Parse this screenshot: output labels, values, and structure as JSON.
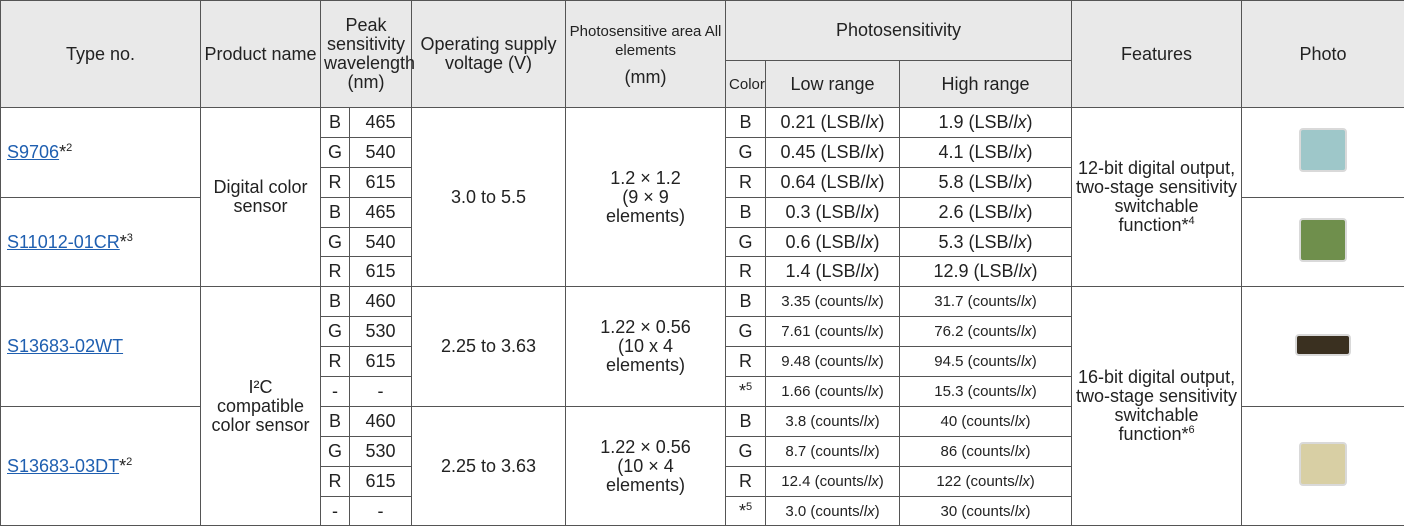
{
  "header": {
    "type_no": "Type no.",
    "product_name": "Product name",
    "peak": "Peak sensitivity wavelength (nm)",
    "voltage": "Operating supply voltage (V)",
    "area": "Photosensitive area All elements",
    "area_unit": "(mm)",
    "photosensitivity": "Photosensitivity",
    "color": "Color",
    "low": "Low range",
    "high": "High range",
    "features": "Features",
    "photo": "Photo"
  },
  "groups": [
    {
      "product_name": "Digital color sensor",
      "features": "12-bit digital output, two-stage sensitivity switchable function",
      "features_note": "*4",
      "blocks": [
        {
          "voltage": "3.0 to 5.5",
          "dims": "1.2 × 1.2",
          "elements": "(9 × 9 elements)",
          "types": [
            {
              "type": "S9706",
              "note": "*2",
              "rows": [
                {
                  "peak_color": "B",
                  "peak_nm": 465,
                  "color": "B",
                  "low": "0.21 (LSB/lx)",
                  "high": "1.9 (LSB/lx)"
                },
                {
                  "peak_color": "G",
                  "peak_nm": 540,
                  "color": "G",
                  "low": "0.45 (LSB/lx)",
                  "high": "4.1 (LSB/lx)"
                },
                {
                  "peak_color": "R",
                  "peak_nm": 615,
                  "color": "R",
                  "low": "0.64 (LSB/lx)",
                  "high": "5.8 (LSB/lx)"
                }
              ]
            },
            {
              "type": "S11012-01CR",
              "note": "*3",
              "rows": [
                {
                  "peak_color": "B",
                  "peak_nm": 465,
                  "color": "B",
                  "low": "0.3 (LSB/lx)",
                  "high": "2.6 (LSB/lx)"
                },
                {
                  "peak_color": "G",
                  "peak_nm": 540,
                  "color": "G",
                  "low": "0.6 (LSB/lx)",
                  "high": "5.3 (LSB/lx)"
                },
                {
                  "peak_color": "R",
                  "peak_nm": 615,
                  "color": "R",
                  "low": "1.4 (LSB/lx)",
                  "high": "12.9 (LSB/lx)"
                }
              ]
            }
          ]
        }
      ]
    },
    {
      "product_name": "I²C compatible color sensor",
      "features": "16-bit digital output, two-stage sensitivity switchable function",
      "features_note": "*6",
      "blocks": [
        {
          "voltage": "2.25 to 3.63",
          "dims": "1.22 × 0.56",
          "elements": "(10 x 4 elements)",
          "types": [
            {
              "type": "S13683-02WT",
              "rows": [
                {
                  "peak_color": "B",
                  "peak_nm": 460,
                  "color": "B",
                  "low": "3.35 (counts/lx)",
                  "high": "31.7 (counts/lx)"
                },
                {
                  "peak_color": "G",
                  "peak_nm": 530,
                  "color": "G",
                  "low": "7.61 (counts/lx)",
                  "high": "76.2 (counts/lx)"
                },
                {
                  "peak_color": "R",
                  "peak_nm": 615,
                  "color": "R",
                  "low": "9.48 (counts/lx)",
                  "high": "94.5 (counts/lx)"
                },
                {
                  "peak_color": "-",
                  "peak_nm": "-",
                  "color": "*5",
                  "low": "1.66 (counts/lx)",
                  "high": "15.3 (counts/lx)"
                }
              ]
            }
          ]
        },
        {
          "voltage": "2.25 to 3.63",
          "dims": "1.22 × 0.56",
          "elements": "(10 × 4 elements)",
          "types": [
            {
              "type": "S13683-03DT",
              "note": "*2",
              "rows": [
                {
                  "peak_color": "B",
                  "peak_nm": 460,
                  "color": "B",
                  "low": "3.8 (counts/lx)",
                  "high": "40 (counts/lx)"
                },
                {
                  "peak_color": "G",
                  "peak_nm": 530,
                  "color": "G",
                  "low": "8.7 (counts/lx)",
                  "high": "86 (counts/lx)"
                },
                {
                  "peak_color": "R",
                  "peak_nm": 615,
                  "color": "R",
                  "low": "12.4 (counts/lx)",
                  "high": "122 (counts/lx)"
                },
                {
                  "peak_color": "-",
                  "peak_nm": "-",
                  "color": "*5",
                  "low": "3.0 (counts/lx)",
                  "high": "30 (counts/lx)"
                }
              ]
            }
          ]
        }
      ]
    }
  ]
}
